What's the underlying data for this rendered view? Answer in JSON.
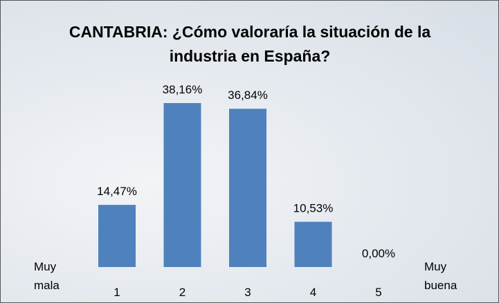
{
  "chart_data": {
    "type": "bar",
    "title": "CANTABRIA: ¿Cómo valoraría la situación de la industria en España?",
    "categories": [
      "1",
      "2",
      "3",
      "4",
      "5"
    ],
    "values": [
      14.47,
      38.16,
      36.84,
      10.53,
      0.0
    ],
    "value_labels": [
      "14,47%",
      "38,16%",
      "36,84%",
      "10,53%",
      "0,00%"
    ],
    "color": "#4f81bd",
    "left_label": [
      "Muy",
      "mala"
    ],
    "right_label": [
      "Muy",
      "buena"
    ]
  }
}
